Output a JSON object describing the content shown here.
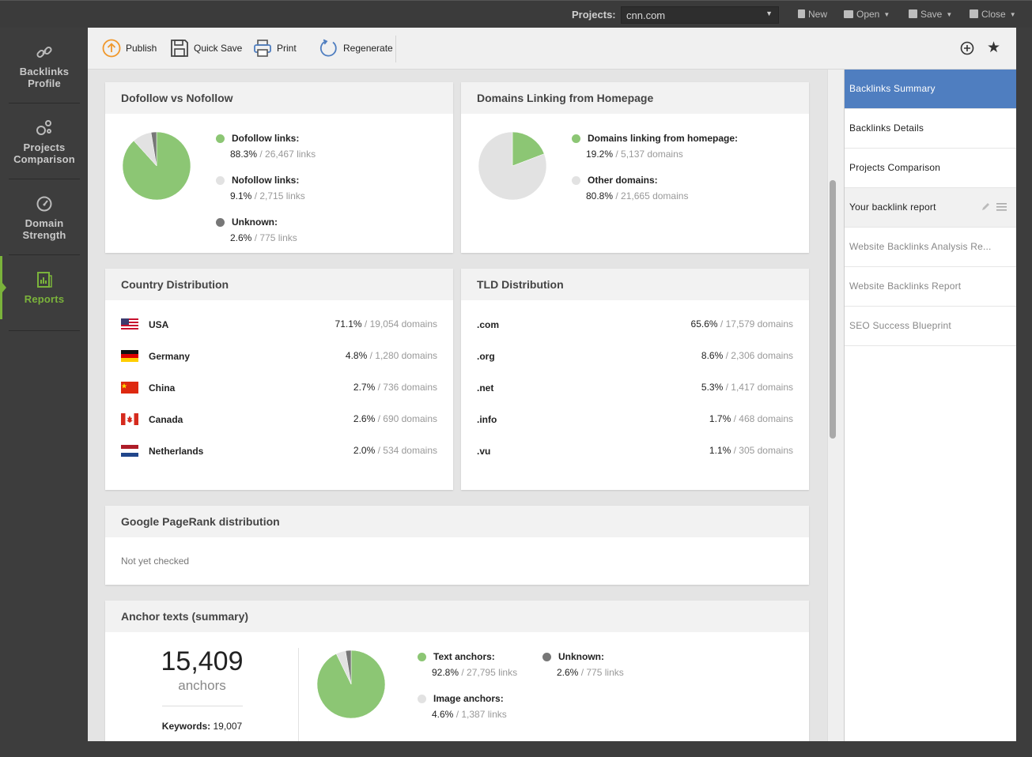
{
  "topbar": {
    "projects_label": "Projects:",
    "project_value": "cnn.com",
    "buttons": {
      "new": "New",
      "open": "Open",
      "save": "Save",
      "close": "Close"
    }
  },
  "leftnav": {
    "items": [
      {
        "label1": "Backlinks",
        "label2": "Profile",
        "icon": "link-icon"
      },
      {
        "label1": "Projects",
        "label2": "Comparison",
        "icon": "circles-icon"
      },
      {
        "label1": "Domain",
        "label2": "Strength",
        "icon": "gauge-icon"
      },
      {
        "label1": "Reports",
        "label2": "",
        "icon": "report-icon",
        "active": true
      }
    ]
  },
  "toolbar": {
    "publish": "Publish",
    "quick_save": "Quick Save",
    "print": "Print",
    "regenerate": "Regenerate"
  },
  "cards": {
    "dofollow": {
      "title": "Dofollow vs Nofollow",
      "items": [
        {
          "label": "Dofollow links:",
          "pct": "88.3%",
          "count": "26,467 links",
          "color": "#8cc674"
        },
        {
          "label": "Nofollow links:",
          "pct": "9.1%",
          "count": "2,715 links",
          "color": "#e2e2e2"
        },
        {
          "label": "Unknown:",
          "pct": "2.6%",
          "count": "775 links",
          "color": "#777777"
        }
      ]
    },
    "homepage": {
      "title": "Domains Linking from Homepage",
      "items": [
        {
          "label": "Domains linking from homepage:",
          "pct": "19.2%",
          "count": "5,137 domains",
          "color": "#8cc674"
        },
        {
          "label": "Other domains:",
          "pct": "80.8%",
          "count": "21,665 domains",
          "color": "#e2e2e2"
        }
      ]
    },
    "country": {
      "title": "Country Distribution",
      "rows": [
        {
          "name": "USA",
          "pct": "71.1%",
          "count": "19,054 domains",
          "flag": "us"
        },
        {
          "name": "Germany",
          "pct": "4.8%",
          "count": "1,280 domains",
          "flag": "de"
        },
        {
          "name": "China",
          "pct": "2.7%",
          "count": "736 domains",
          "flag": "cn"
        },
        {
          "name": "Canada",
          "pct": "2.6%",
          "count": "690 domains",
          "flag": "ca"
        },
        {
          "name": "Netherlands",
          "pct": "2.0%",
          "count": "534 domains",
          "flag": "nl"
        }
      ]
    },
    "tld": {
      "title": "TLD Distribution",
      "rows": [
        {
          "name": ".com",
          "pct": "65.6%",
          "count": "17,579 domains"
        },
        {
          "name": ".org",
          "pct": "8.6%",
          "count": "2,306 domains"
        },
        {
          "name": ".net",
          "pct": "5.3%",
          "count": "1,417 domains"
        },
        {
          "name": ".info",
          "pct": "1.7%",
          "count": "468 domains"
        },
        {
          "name": ".vu",
          "pct": "1.1%",
          "count": "305 domains"
        }
      ]
    },
    "pagerank": {
      "title": "Google PageRank distribution",
      "status": "Not yet checked"
    },
    "anchors": {
      "title": "Anchor texts (summary)",
      "total": "15,409",
      "total_label": "anchors",
      "keywords_label": "Keywords:",
      "keywords_value": "19,007",
      "items": [
        {
          "label": "Text anchors:",
          "pct": "92.8%",
          "count": "27,795 links",
          "color": "#8cc674"
        },
        {
          "label": "Image anchors:",
          "pct": "4.6%",
          "count": "1,387 links",
          "color": "#e2e2e2"
        },
        {
          "label": "Unknown:",
          "pct": "2.6%",
          "count": "775 links",
          "color": "#777777"
        }
      ]
    }
  },
  "rightpanel": {
    "items": [
      {
        "label": "Backlinks Summary",
        "state": "active"
      },
      {
        "label": "Backlinks Details",
        "state": "normal"
      },
      {
        "label": "Projects Comparison",
        "state": "normal"
      },
      {
        "label": "Your backlink report",
        "state": "hover"
      },
      {
        "label": "Website Backlinks Analysis Re...",
        "state": "dim"
      },
      {
        "label": "Website Backlinks Report",
        "state": "dim"
      },
      {
        "label": "SEO Success Blueprint",
        "state": "dim"
      }
    ]
  },
  "colors": {
    "accent_green": "#7bb33b",
    "pie_green": "#8cc674",
    "pie_gray": "#e2e2e2",
    "pie_dark": "#777777",
    "selected_blue": "#4f7ec0"
  }
}
